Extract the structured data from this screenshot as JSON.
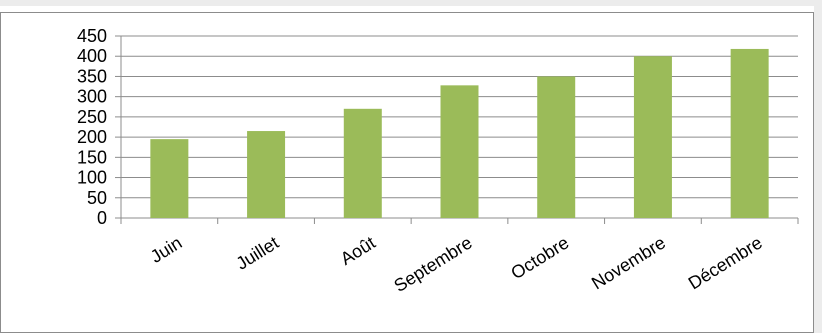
{
  "chart_data": {
    "type": "bar",
    "categories": [
      "Juin",
      "Juillet",
      "Août",
      "Septembre",
      "Octobre",
      "Novembre",
      "Décembre"
    ],
    "series": [
      {
        "values": [
          195,
          215,
          270,
          328,
          350,
          400,
          418
        ]
      }
    ],
    "title": "",
    "xlabel": "",
    "ylabel": "",
    "ylim": [
      0,
      450
    ],
    "yticks": [
      "0",
      "50",
      "100",
      "150",
      "200",
      "250",
      "300",
      "350",
      "400",
      "450"
    ],
    "grid": true,
    "legend": "none",
    "colors": {
      "bar": "#9bbb59",
      "grid": "#8c8c8c",
      "axis": "#8c8c8c",
      "text": "#000000",
      "frame": "#ececec"
    }
  }
}
